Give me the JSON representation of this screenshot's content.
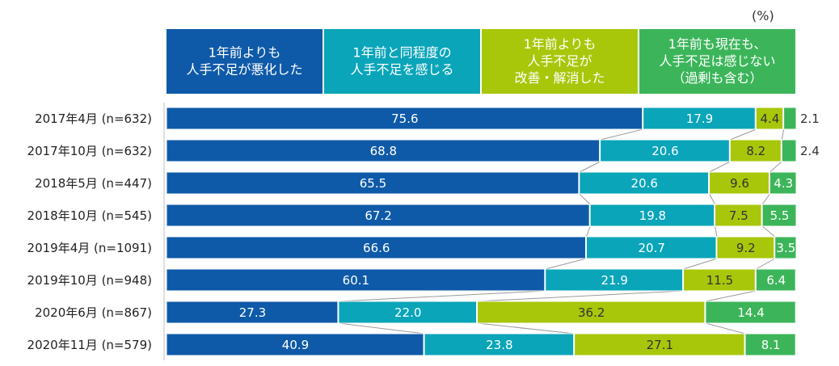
{
  "chart_data": {
    "type": "bar",
    "orientation": "horizontal",
    "stacked": true,
    "unit_label": "(%)",
    "title": "",
    "xlabel": "",
    "ylabel": "",
    "xlim": [
      0,
      100
    ],
    "grid": false,
    "legend_position": "top",
    "categories": [
      "2017年4月 (n=632)",
      "2017年10月 (n=632)",
      "2018年5月 (n=447)",
      "2018年10月 (n=545)",
      "2019年4月 (n=1091)",
      "2019年10月 (n=948)",
      "2020年6月 (n=867)",
      "2020年11月 (n=579)"
    ],
    "series": [
      {
        "name": "1年前よりも\n人手不足が悪化した",
        "color": "#0F5AA8",
        "values": [
          75.6,
          68.8,
          65.5,
          67.2,
          66.6,
          60.1,
          27.3,
          40.9
        ]
      },
      {
        "name": "1年前と同程度の\n人手不足を感じる",
        "color": "#0AA5B9",
        "values": [
          17.9,
          20.6,
          20.6,
          19.8,
          20.7,
          21.9,
          22.0,
          23.8
        ]
      },
      {
        "name": "1年前よりも\n人手不足が\n改善・解消した",
        "color": "#A8C70A",
        "values": [
          4.4,
          8.2,
          9.6,
          7.5,
          9.2,
          11.5,
          36.2,
          27.1
        ]
      },
      {
        "name": "1年前も現在も、\n人手不足は感じない\n（過剰も含む）",
        "color": "#3CB55A",
        "values": [
          2.1,
          2.4,
          4.3,
          5.5,
          3.5,
          6.4,
          14.4,
          8.1
        ]
      }
    ],
    "value_labels": [
      [
        "75.6",
        "17.9",
        "4.4",
        "2.1"
      ],
      [
        "68.8",
        "20.6",
        "8.2",
        "2.4"
      ],
      [
        "65.5",
        "20.6",
        "9.6",
        "4.3"
      ],
      [
        "67.2",
        "19.8",
        "7.5",
        "5.5"
      ],
      [
        "66.6",
        "20.7",
        "9.2",
        "3.5"
      ],
      [
        "60.1",
        "21.9",
        "11.5",
        "6.4"
      ],
      [
        "27.3",
        "22.0",
        "36.2",
        "14.4"
      ],
      [
        "40.9",
        "23.8",
        "27.1",
        "8.1"
      ]
    ]
  }
}
